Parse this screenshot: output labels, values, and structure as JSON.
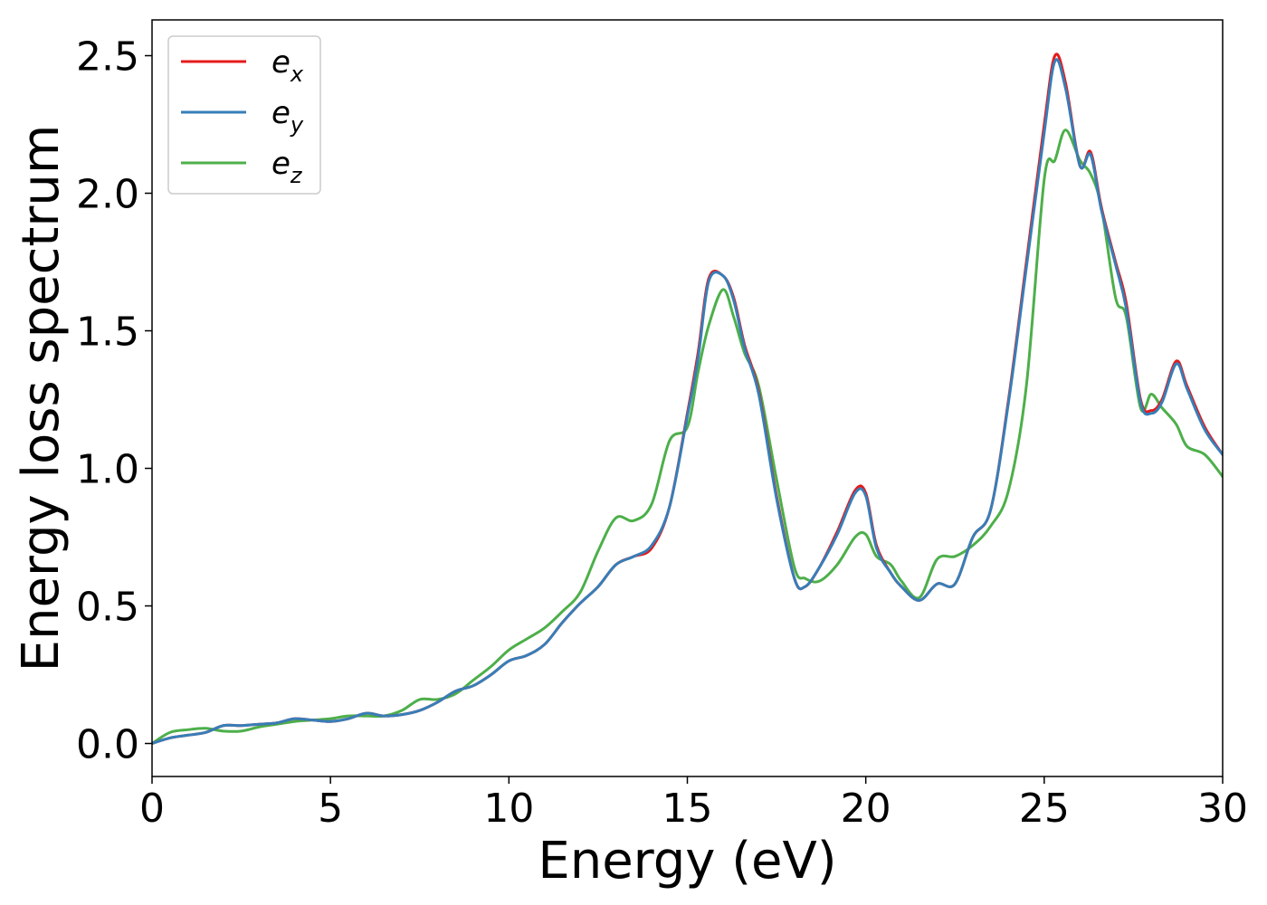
{
  "chart_data": {
    "type": "line",
    "title": "",
    "xlabel": "Energy (eV)",
    "ylabel": "Energy loss spectrum",
    "xlim": [
      0,
      30
    ],
    "ylim": [
      -0.12,
      2.63
    ],
    "xticks": [
      "0",
      "5",
      "10",
      "15",
      "20",
      "25",
      "30"
    ],
    "yticks": [
      "0.0",
      "0.5",
      "1.0",
      "1.5",
      "2.0",
      "2.5"
    ],
    "grid": false,
    "legend_position": "top-left",
    "series": [
      {
        "name": "e",
        "subscript": "x",
        "color": "#e41a1c",
        "x": [
          0,
          0.5,
          1,
          1.5,
          2,
          2.5,
          3,
          3.5,
          4,
          4.5,
          5,
          5.5,
          6,
          6.5,
          7,
          7.5,
          8,
          8.5,
          9,
          9.5,
          10,
          10.5,
          11,
          11.5,
          12,
          12.5,
          13,
          13.5,
          14,
          14.5,
          15,
          15.3,
          15.6,
          16,
          16.3,
          16.6,
          17,
          17.5,
          18,
          18.3,
          18.7,
          19.2,
          19.7,
          20,
          20.3,
          20.7,
          21,
          21.5,
          22,
          22.5,
          23,
          23.5,
          24,
          24.5,
          25,
          25.3,
          25.6,
          26,
          26.3,
          26.6,
          27,
          27.3,
          27.7,
          28,
          28.3,
          28.7,
          29,
          29.5,
          30
        ],
        "y": [
          0.0,
          0.02,
          0.03,
          0.04,
          0.065,
          0.065,
          0.07,
          0.075,
          0.09,
          0.085,
          0.08,
          0.09,
          0.11,
          0.1,
          0.105,
          0.12,
          0.15,
          0.19,
          0.21,
          0.25,
          0.3,
          0.32,
          0.36,
          0.44,
          0.51,
          0.57,
          0.65,
          0.68,
          0.71,
          0.86,
          1.2,
          1.42,
          1.69,
          1.7,
          1.62,
          1.45,
          1.28,
          0.9,
          0.6,
          0.57,
          0.64,
          0.77,
          0.92,
          0.91,
          0.72,
          0.62,
          0.57,
          0.52,
          0.58,
          0.58,
          0.75,
          0.85,
          1.25,
          1.75,
          2.25,
          2.5,
          2.4,
          2.1,
          2.15,
          1.95,
          1.75,
          1.6,
          1.25,
          1.21,
          1.25,
          1.39,
          1.3,
          1.15,
          1.05
        ]
      },
      {
        "name": "e",
        "subscript": "y",
        "color": "#377eb8",
        "x": [
          0,
          0.5,
          1,
          1.5,
          2,
          2.5,
          3,
          3.5,
          4,
          4.5,
          5,
          5.5,
          6,
          6.5,
          7,
          7.5,
          8,
          8.5,
          9,
          9.5,
          10,
          10.5,
          11,
          11.5,
          12,
          12.5,
          13,
          13.5,
          14,
          14.5,
          15,
          15.3,
          15.6,
          16,
          16.3,
          16.6,
          17,
          17.5,
          18,
          18.3,
          18.7,
          19.2,
          19.7,
          20,
          20.3,
          20.7,
          21,
          21.5,
          22,
          22.5,
          23,
          23.5,
          24,
          24.5,
          25,
          25.3,
          25.6,
          26,
          26.3,
          26.6,
          27,
          27.3,
          27.7,
          28,
          28.3,
          28.7,
          29,
          29.5,
          30
        ],
        "y": [
          0.0,
          0.02,
          0.03,
          0.04,
          0.065,
          0.065,
          0.07,
          0.075,
          0.09,
          0.085,
          0.08,
          0.09,
          0.11,
          0.1,
          0.105,
          0.12,
          0.15,
          0.19,
          0.21,
          0.25,
          0.3,
          0.32,
          0.36,
          0.44,
          0.51,
          0.57,
          0.65,
          0.68,
          0.72,
          0.86,
          1.19,
          1.4,
          1.68,
          1.7,
          1.61,
          1.44,
          1.27,
          0.89,
          0.6,
          0.57,
          0.64,
          0.76,
          0.91,
          0.9,
          0.71,
          0.62,
          0.57,
          0.52,
          0.58,
          0.58,
          0.75,
          0.85,
          1.24,
          1.73,
          2.22,
          2.48,
          2.38,
          2.1,
          2.14,
          1.94,
          1.74,
          1.58,
          1.24,
          1.2,
          1.24,
          1.38,
          1.29,
          1.14,
          1.05
        ]
      },
      {
        "name": "e",
        "subscript": "z",
        "color": "#4daf4a",
        "x": [
          0,
          0.5,
          1,
          1.5,
          2,
          2.5,
          3,
          3.5,
          4,
          4.5,
          5,
          5.5,
          6,
          6.5,
          7,
          7.5,
          8,
          8.5,
          9,
          9.5,
          10,
          10.5,
          11,
          11.5,
          12,
          12.5,
          13,
          13.5,
          14,
          14.5,
          15,
          15.3,
          15.6,
          16,
          16.3,
          16.6,
          17,
          17.5,
          18,
          18.3,
          18.7,
          19.2,
          19.7,
          20,
          20.3,
          20.7,
          21,
          21.5,
          22,
          22.5,
          23,
          23.5,
          24,
          24.5,
          25,
          25.3,
          25.6,
          26,
          26.3,
          26.6,
          27,
          27.3,
          27.7,
          28,
          28.3,
          28.7,
          29,
          29.5,
          30
        ],
        "y": [
          0.0,
          0.04,
          0.05,
          0.055,
          0.045,
          0.045,
          0.06,
          0.07,
          0.08,
          0.085,
          0.09,
          0.1,
          0.1,
          0.1,
          0.12,
          0.16,
          0.16,
          0.18,
          0.23,
          0.28,
          0.34,
          0.38,
          0.42,
          0.48,
          0.55,
          0.7,
          0.82,
          0.81,
          0.87,
          1.1,
          1.15,
          1.35,
          1.52,
          1.65,
          1.55,
          1.42,
          1.3,
          0.96,
          0.64,
          0.6,
          0.59,
          0.65,
          0.75,
          0.76,
          0.68,
          0.65,
          0.59,
          0.53,
          0.67,
          0.68,
          0.72,
          0.79,
          0.92,
          1.3,
          2.05,
          2.12,
          2.23,
          2.12,
          2.07,
          1.95,
          1.62,
          1.55,
          1.22,
          1.27,
          1.22,
          1.16,
          1.08,
          1.05,
          0.97
        ]
      }
    ]
  }
}
